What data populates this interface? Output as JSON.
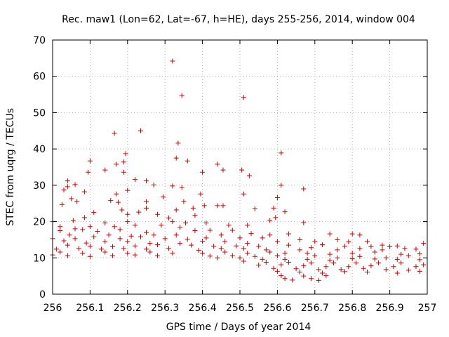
{
  "chart_data": {
    "type": "scatter",
    "title": "Rec. maw1 (Lon=62, Lat=-67, h=HE), days 255-256, 2014, window 004",
    "xlabel": "GPS time / Days of year 2014",
    "ylabel": "STEC from uqrg / TECUs",
    "xlim": [
      256,
      257
    ],
    "ylim": [
      0,
      70
    ],
    "xticks": [
      256,
      256.1,
      256.2,
      256.3,
      256.4,
      256.5,
      256.6,
      256.7,
      256.8,
      256.9,
      257
    ],
    "xtick_labels": [
      "256",
      "256.1",
      "256.2",
      "256.3",
      "256.4",
      "256.5",
      "256.6",
      "256.7",
      "256.8",
      "256.9",
      "257"
    ],
    "yticks": [
      0,
      10,
      20,
      30,
      40,
      50,
      60,
      70
    ],
    "ytick_labels": [
      "0",
      "10",
      "20",
      "30",
      "40",
      "50",
      "60",
      "70"
    ],
    "grid": true,
    "marker": "plus",
    "color": "#cc0000",
    "series": [
      {
        "points": [
          [
            256.32,
            64.2
          ],
          [
            256.51,
            54.2
          ],
          [
            256.345,
            54.7
          ],
          [
            256.235,
            45.0
          ],
          [
            256.165,
            44.3
          ],
          [
            256.335,
            41.6
          ],
          [
            256.61,
            38.9
          ],
          [
            256.195,
            38.7
          ],
          [
            256.33,
            37.5
          ],
          [
            256.36,
            36.7
          ],
          [
            256.19,
            36.4
          ],
          [
            256.17,
            35.8
          ],
          [
            256.1,
            36.7
          ],
          [
            256.44,
            35.8
          ],
          [
            256.455,
            34.2
          ],
          [
            256.505,
            34.2
          ],
          [
            256.14,
            34.2
          ],
          [
            256.095,
            33.6
          ],
          [
            256.19,
            33.6
          ],
          [
            256.4,
            33.6
          ],
          [
            256.525,
            32.6
          ],
          [
            256.22,
            31.6
          ],
          [
            256.25,
            31.2
          ],
          [
            256.04,
            31.2
          ],
          [
            256.06,
            30.2
          ],
          [
            256.27,
            30.1
          ],
          [
            256.04,
            29.6
          ],
          [
            256.32,
            29.8
          ],
          [
            256.345,
            29.4
          ],
          [
            256.61,
            30.0
          ],
          [
            256.67,
            29.0
          ],
          [
            256.03,
            28.7
          ],
          [
            256.2,
            28.6
          ],
          [
            256.085,
            28.2
          ],
          [
            256.17,
            27.6
          ],
          [
            256.395,
            27.6
          ],
          [
            256.51,
            27.6
          ],
          [
            256.6,
            26.6
          ],
          [
            256.295,
            26.8
          ],
          [
            256.05,
            26.3
          ],
          [
            256.065,
            25.5
          ],
          [
            256.155,
            25.8
          ],
          [
            256.175,
            25.3
          ],
          [
            256.35,
            25.5
          ],
          [
            256.25,
            25.5
          ],
          [
            256.025,
            24.7
          ],
          [
            256.405,
            24.4
          ],
          [
            256.44,
            24.4
          ],
          [
            256.455,
            24.4
          ],
          [
            256.59,
            23.7
          ],
          [
            256.25,
            23.7
          ],
          [
            256.54,
            23.5
          ],
          [
            256.375,
            23.7
          ],
          [
            256.33,
            23.2
          ],
          [
            256.11,
            22.5
          ],
          [
            256.185,
            23.2
          ],
          [
            256.2,
            22.0
          ],
          [
            256.23,
            22.6
          ],
          [
            256.28,
            22.0
          ],
          [
            256.62,
            22.7
          ],
          [
            256.38,
            21.7
          ],
          [
            256.595,
            21.1
          ],
          [
            256.085,
            21.1
          ],
          [
            256.055,
            20.3
          ],
          [
            256.0,
            20.0
          ],
          [
            256.14,
            19.6
          ],
          [
            256.2,
            20.0
          ],
          [
            256.31,
            21.0
          ],
          [
            256.32,
            20.0
          ],
          [
            256.355,
            19.6
          ],
          [
            256.41,
            19.6
          ],
          [
            256.47,
            19.0
          ],
          [
            256.52,
            19.0
          ],
          [
            256.67,
            19.7
          ],
          [
            256.58,
            20.3
          ],
          [
            256.02,
            18.6
          ],
          [
            256.06,
            18.0
          ],
          [
            256.1,
            18.6
          ],
          [
            256.165,
            18.6
          ],
          [
            256.22,
            19.0
          ],
          [
            256.29,
            19.0
          ],
          [
            256.34,
            18.4
          ],
          [
            256.02,
            17.5
          ],
          [
            256.08,
            17.8
          ],
          [
            256.12,
            17.3
          ],
          [
            256.18,
            17.8
          ],
          [
            256.25,
            17.0
          ],
          [
            256.38,
            17.5
          ],
          [
            256.42,
            17.6
          ],
          [
            256.48,
            17.6
          ],
          [
            256.53,
            16.7
          ],
          [
            256.045,
            16.3
          ],
          [
            256.15,
            16.3
          ],
          [
            256.21,
            16.0
          ],
          [
            256.27,
            16.3
          ],
          [
            256.33,
            16.3
          ],
          [
            256.45,
            16.3
          ],
          [
            256.58,
            16.3
          ],
          [
            256.63,
            16.6
          ],
          [
            256.74,
            16.6
          ],
          [
            256.8,
            16.6
          ],
          [
            256.82,
            16.3
          ],
          [
            256.0,
            15.3
          ],
          [
            256.06,
            15.3
          ],
          [
            256.11,
            15.8
          ],
          [
            256.18,
            15.3
          ],
          [
            256.235,
            15.8
          ],
          [
            256.3,
            15.3
          ],
          [
            256.36,
            15.1
          ],
          [
            256.41,
            15.5
          ],
          [
            256.5,
            15.5
          ],
          [
            256.56,
            15.5
          ],
          [
            256.66,
            15.0
          ],
          [
            256.76,
            15.0
          ],
          [
            256.03,
            14.7
          ],
          [
            256.09,
            14.1
          ],
          [
            256.14,
            14.5
          ],
          [
            256.2,
            14.5
          ],
          [
            256.26,
            14.0
          ],
          [
            256.34,
            14.0
          ],
          [
            256.4,
            14.6
          ],
          [
            256.46,
            14.5
          ],
          [
            256.52,
            14.0
          ],
          [
            256.6,
            14.5
          ],
          [
            256.7,
            14.5
          ],
          [
            256.79,
            14.4
          ],
          [
            256.84,
            14.5
          ],
          [
            256.88,
            13.5
          ],
          [
            256.92,
            13.3
          ],
          [
            256.99,
            14.0
          ],
          [
            256.04,
            13.5
          ],
          [
            256.1,
            13.2
          ],
          [
            256.16,
            13.1
          ],
          [
            256.22,
            13.3
          ],
          [
            256.28,
            13.6
          ],
          [
            256.37,
            13.5
          ],
          [
            256.43,
            13.2
          ],
          [
            256.49,
            13.3
          ],
          [
            256.55,
            13.2
          ],
          [
            256.63,
            13.5
          ],
          [
            256.72,
            13.6
          ],
          [
            256.78,
            13.2
          ],
          [
            256.85,
            13.1
          ],
          [
            256.9,
            13.1
          ],
          [
            256.94,
            12.6
          ],
          [
            256.01,
            12.4
          ],
          [
            256.07,
            12.6
          ],
          [
            256.13,
            12.4
          ],
          [
            256.19,
            12.6
          ],
          [
            256.25,
            12.4
          ],
          [
            256.31,
            12.6
          ],
          [
            256.39,
            12.1
          ],
          [
            256.45,
            12.6
          ],
          [
            256.51,
            12.6
          ],
          [
            256.57,
            12.2
          ],
          [
            256.66,
            12.2
          ],
          [
            256.69,
            12.8
          ],
          [
            256.76,
            12.2
          ],
          [
            256.82,
            12.6
          ],
          [
            256.88,
            12.2
          ],
          [
            256.97,
            12.4
          ],
          [
            256.02,
            11.6
          ],
          [
            256.08,
            11.3
          ],
          [
            256.14,
            11.6
          ],
          [
            256.2,
            11.3
          ],
          [
            256.26,
            11.6
          ],
          [
            256.32,
            11.3
          ],
          [
            256.4,
            11.3
          ],
          [
            256.46,
            11.6
          ],
          [
            256.52,
            11.3
          ],
          [
            256.58,
            11.6
          ],
          [
            256.62,
            11.3
          ],
          [
            256.68,
            11.3
          ],
          [
            256.74,
            11.0
          ],
          [
            256.8,
            11.3
          ],
          [
            256.86,
            11.6
          ],
          [
            256.93,
            11.0
          ],
          [
            256.98,
            11.1
          ],
          [
            256.0,
            10.8
          ],
          [
            256.04,
            10.6
          ],
          [
            256.1,
            10.4
          ],
          [
            256.16,
            10.6
          ],
          [
            256.22,
            10.8
          ],
          [
            256.28,
            10.6
          ],
          [
            256.42,
            10.5
          ],
          [
            256.48,
            10.6
          ],
          [
            256.54,
            10.4
          ],
          [
            256.6,
            10.6
          ],
          [
            256.7,
            10.6
          ],
          [
            256.76,
            10.0
          ],
          [
            256.82,
            10.4
          ],
          [
            256.89,
            10.0
          ],
          [
            256.95,
            10.6
          ],
          [
            256.44,
            10.0
          ],
          [
            256.5,
            10.0
          ],
          [
            256.56,
            9.6
          ],
          [
            256.62,
            9.6
          ],
          [
            256.68,
            9.6
          ],
          [
            256.74,
            9.3
          ],
          [
            256.8,
            9.8
          ],
          [
            256.86,
            9.7
          ],
          [
            256.92,
            9.6
          ],
          [
            256.98,
            9.5
          ],
          [
            256.51,
            9.1
          ],
          [
            256.57,
            8.8
          ],
          [
            256.63,
            8.8
          ],
          [
            256.69,
            8.6
          ],
          [
            256.75,
            8.6
          ],
          [
            256.81,
            8.6
          ],
          [
            256.87,
            8.6
          ],
          [
            256.93,
            8.6
          ],
          [
            256.99,
            8.1
          ],
          [
            256.55,
            8.0
          ],
          [
            256.61,
            8.1
          ],
          [
            256.67,
            7.8
          ],
          [
            256.73,
            7.6
          ],
          [
            256.79,
            7.6
          ],
          [
            256.85,
            7.8
          ],
          [
            256.91,
            7.6
          ],
          [
            256.97,
            7.6
          ],
          [
            256.59,
            7.1
          ],
          [
            256.65,
            7.0
          ],
          [
            256.71,
            6.8
          ],
          [
            256.77,
            6.8
          ],
          [
            256.83,
            7.1
          ],
          [
            256.89,
            6.8
          ],
          [
            256.95,
            6.6
          ],
          [
            256.6,
            6.3
          ],
          [
            256.66,
            6.1
          ],
          [
            256.72,
            5.8
          ],
          [
            256.78,
            6.2
          ],
          [
            256.84,
            6.1
          ],
          [
            256.92,
            5.8
          ],
          [
            256.98,
            6.3
          ],
          [
            256.61,
            5.1
          ],
          [
            256.67,
            5.0
          ],
          [
            256.73,
            5.1
          ],
          [
            256.62,
            4.3
          ],
          [
            256.64,
            3.9
          ],
          [
            256.69,
            4.3
          ],
          [
            256.71,
            3.8
          ]
        ]
      }
    ]
  }
}
